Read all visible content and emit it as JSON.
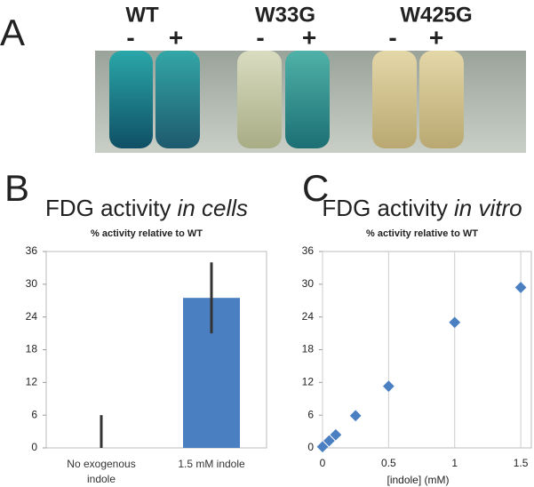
{
  "panel_a": {
    "label": "A",
    "strains": [
      {
        "name": "WT",
        "conditions": [
          "-",
          "+"
        ]
      },
      {
        "name": "W33G",
        "conditions": [
          "-",
          "+"
        ]
      },
      {
        "name": "W425G",
        "conditions": [
          "-",
          "+"
        ]
      }
    ]
  },
  "chart_data": [
    {
      "type": "bar",
      "panel_label": "B",
      "title": [
        "FDG activity",
        "in cells"
      ],
      "subtitle": "% activity relative to WT",
      "categories": [
        "No exogenous indole",
        "1.5 mM indole"
      ],
      "values": [
        0,
        27.5
      ],
      "errors": [
        6,
        6.5
      ],
      "color": "#4a7fc1",
      "ylim": [
        0,
        36
      ],
      "yticks": [
        0,
        6,
        12,
        18,
        24,
        30,
        36
      ]
    },
    {
      "type": "scatter",
      "panel_label": "C",
      "title": [
        "FDG activity",
        "in vitro"
      ],
      "subtitle": "% activity relative to WT",
      "x": [
        0,
        0.05,
        0.1,
        0.25,
        0.5,
        1,
        1.5
      ],
      "values": [
        0.2,
        1.3,
        2.4,
        5.9,
        11.3,
        23,
        29.4
      ],
      "color": "#4a7fc1",
      "xlabel": "[indole]  (mM)",
      "xlim": [
        0,
        1.58
      ],
      "xticks": [
        0,
        0.5,
        1,
        1.5
      ],
      "ylim": [
        0,
        36
      ],
      "yticks": [
        0,
        6,
        12,
        18,
        24,
        30,
        36
      ],
      "grid": "x"
    }
  ]
}
